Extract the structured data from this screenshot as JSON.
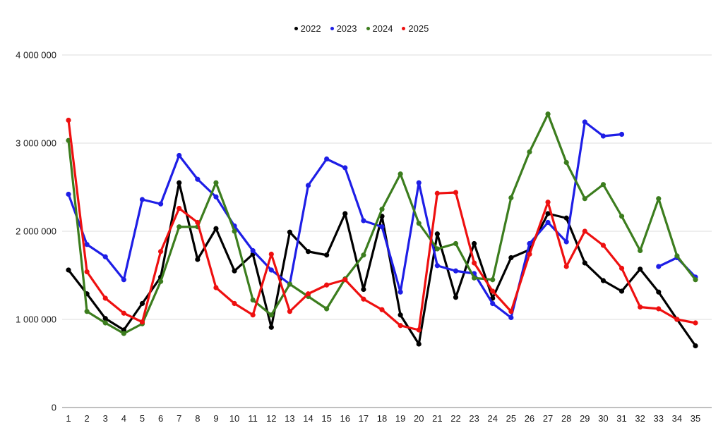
{
  "chart_data": {
    "type": "line",
    "title": "",
    "xlabel": "",
    "ylabel": "",
    "categories": [
      1,
      2,
      3,
      4,
      5,
      6,
      7,
      8,
      9,
      10,
      11,
      12,
      13,
      14,
      15,
      16,
      17,
      18,
      19,
      20,
      21,
      22,
      23,
      24,
      25,
      26,
      27,
      28,
      29,
      30,
      31,
      32,
      33,
      34,
      35
    ],
    "ylim": [
      0,
      4000000
    ],
    "y_ticks": {
      "values": [
        0,
        1000000,
        2000000,
        3000000,
        4000000
      ],
      "labels": [
        "0",
        "1 000 000",
        "2 000 000",
        "3 000 000",
        "4 000 000"
      ]
    },
    "grid": true,
    "legend_position": "top-center",
    "series": [
      {
        "name": "2022",
        "color": "#000000",
        "values": [
          1560000,
          1290000,
          1010000,
          880000,
          1180000,
          1480000,
          2550000,
          1680000,
          2030000,
          1550000,
          1740000,
          910000,
          1990000,
          1770000,
          1730000,
          2200000,
          1340000,
          2170000,
          1050000,
          720000,
          1970000,
          1250000,
          1860000,
          1240000,
          1700000,
          1790000,
          2200000,
          2150000,
          1640000,
          1440000,
          1320000,
          1570000,
          1310000,
          1000000,
          700000
        ]
      },
      {
        "name": "2023",
        "color": "#1e1ee6",
        "values": [
          2420000,
          1850000,
          1710000,
          1450000,
          2360000,
          2310000,
          2860000,
          2590000,
          2390000,
          2060000,
          1780000,
          1560000,
          1400000,
          2520000,
          2820000,
          2720000,
          2120000,
          2050000,
          1310000,
          2550000,
          1610000,
          1550000,
          1520000,
          1180000,
          1020000,
          1860000,
          2100000,
          1880000,
          3240000,
          3080000,
          3100000,
          null,
          1600000,
          1700000,
          1480000
        ]
      },
      {
        "name": "2024",
        "color": "#3c7d1e",
        "values": [
          3030000,
          1090000,
          960000,
          840000,
          950000,
          1430000,
          2050000,
          2050000,
          2550000,
          2000000,
          1220000,
          1050000,
          1400000,
          1260000,
          1120000,
          1460000,
          1730000,
          2250000,
          2650000,
          2090000,
          1800000,
          1860000,
          1470000,
          1450000,
          2380000,
          2900000,
          3330000,
          2780000,
          2370000,
          2530000,
          2170000,
          1780000,
          2370000,
          1720000,
          1450000
        ]
      },
      {
        "name": "2025",
        "color": "#ee1010",
        "values": [
          3260000,
          1540000,
          1240000,
          1070000,
          970000,
          1770000,
          2260000,
          2100000,
          1360000,
          1180000,
          1050000,
          1740000,
          1090000,
          1290000,
          1390000,
          1450000,
          1230000,
          1110000,
          930000,
          880000,
          2430000,
          2440000,
          1640000,
          1320000,
          1090000,
          1740000,
          2330000,
          1600000,
          2000000,
          1840000,
          1580000,
          1140000,
          1120000,
          1000000,
          960000
        ]
      }
    ]
  }
}
